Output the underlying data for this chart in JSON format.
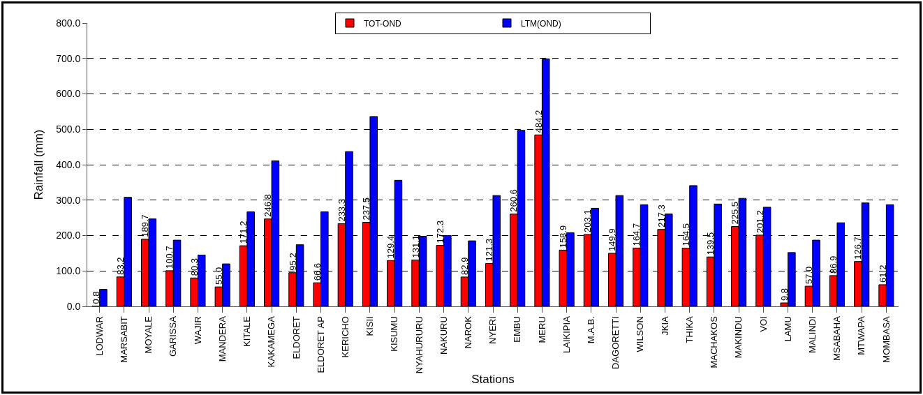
{
  "chart_data": {
    "type": "bar",
    "xlabel": "Stations",
    "ylabel": "Rainfall (mm)",
    "categories": [
      "LODWAR",
      "MARSABIT",
      "MOYALE",
      "GARISSA",
      "WAJIR",
      "MANDERA",
      "KITALE",
      "KAKAMEGA",
      "ELDORET",
      "ELDORET AP",
      "KERICHO",
      "KISII",
      "KISUMU",
      "NYAHURURU",
      "NAKURU",
      "NAROK",
      "NYERI",
      "EMBU",
      "MERU",
      "LAIKIPIA",
      "M.A.B.",
      "DAGORETTI",
      "WILSON",
      "JKIA",
      "THIKA",
      "MACHAKOS",
      "MAKINDU",
      "VOI",
      "LAMU",
      "MALINDI",
      "MSABAHA",
      "MTWAPA",
      "MOMBASA"
    ],
    "series": [
      {
        "name": "TOT-OND",
        "color": "#ff0000",
        "values": [
          0.8,
          83.2,
          189.7,
          100.7,
          80.3,
          55.0,
          171.2,
          246.8,
          95.2,
          66.6,
          233.3,
          237.5,
          129.4,
          131.1,
          172.3,
          82.9,
          121.3,
          260.6,
          484.2,
          158.9,
          203.1,
          149.9,
          164.7,
          217.3,
          164.5,
          139.5,
          225.5,
          201.2,
          9.8,
          57.0,
          86.9,
          126.7,
          61.2
        ],
        "value_labels": [
          "0.8",
          "83.2",
          "189.7",
          "100.7",
          "80.3",
          "55.0",
          "171.2",
          "246.8",
          "95.2",
          "66.6",
          "233.3",
          "237.5",
          "129.4",
          "131.1",
          "172.3",
          "82.9",
          "121.3",
          "260.6",
          "484.2",
          "158.9",
          "203.1",
          "149.9",
          "164.7",
          "217.3",
          "164.5",
          "139.5",
          "225.5",
          "201.2",
          "9.8",
          "57.0",
          "86.9",
          "126.7",
          "61.2"
        ]
      },
      {
        "name": "LTM(OND)",
        "color": "#0000ff",
        "values": [
          48,
          308,
          247,
          187,
          145,
          120,
          267,
          411,
          174,
          267,
          437,
          536,
          356,
          198,
          200,
          185,
          313,
          497,
          699,
          208,
          277,
          313,
          287,
          261,
          341,
          289,
          305,
          280,
          152,
          187,
          236,
          292,
          287
        ]
      }
    ],
    "ylim": [
      0,
      800
    ],
    "yticks": [
      {
        "value": 0,
        "label": "0.0"
      },
      {
        "value": 100,
        "label": "100.0"
      },
      {
        "value": 200,
        "label": "200.0"
      },
      {
        "value": 300,
        "label": "300.0"
      },
      {
        "value": 400,
        "label": "400.0"
      },
      {
        "value": 500,
        "label": "500.0"
      },
      {
        "value": 600,
        "label": "600.0"
      },
      {
        "value": 700,
        "label": "700.0"
      },
      {
        "value": 800,
        "label": "800.0"
      }
    ],
    "grid": "y",
    "legend": "top"
  }
}
